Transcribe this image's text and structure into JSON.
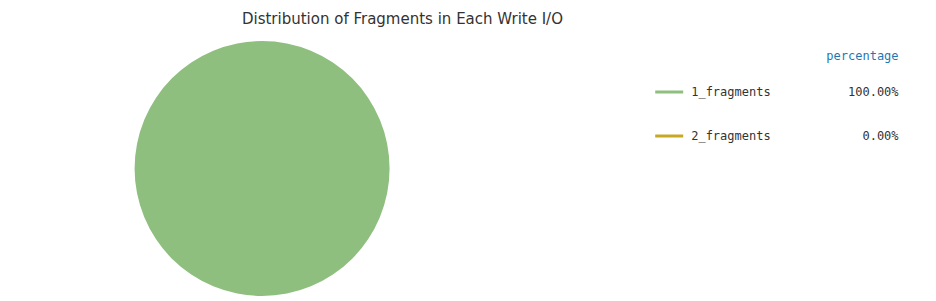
{
  "chart_data": {
    "type": "pie",
    "title": "Distribution of Fragments in Each Write I/O",
    "categories": [
      "1_fragments",
      "2_fragments"
    ],
    "values": [
      100.0,
      1e-06
    ],
    "value_labels": [
      "100.00%",
      "0.00%"
    ],
    "colors": [
      "#8fbf7f",
      "#c8a822"
    ],
    "legend": "right",
    "legend_title": "percentage"
  }
}
